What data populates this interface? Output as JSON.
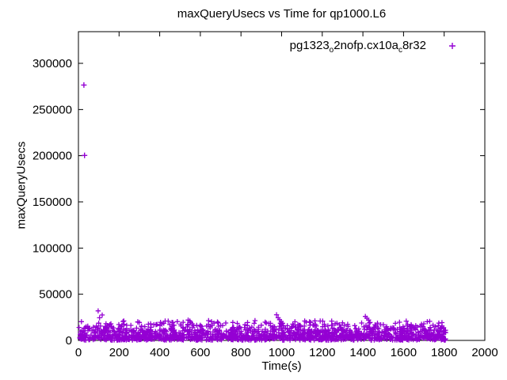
{
  "chart_data": {
    "type": "scatter",
    "title": "maxQueryUsecs vs Time for qp1000.L6",
    "xlabel": "Time(s)",
    "ylabel": "maxQueryUsecs",
    "xlim": [
      0,
      2000
    ],
    "ylim": [
      0,
      334286
    ],
    "xticks": [
      0,
      200,
      400,
      600,
      800,
      1000,
      1200,
      1400,
      1600,
      1800,
      2000
    ],
    "yticks": [
      0,
      50000,
      100000,
      150000,
      200000,
      250000,
      300000
    ],
    "grid": false,
    "legend_position": "top-right-inside",
    "frame_color": "#000000",
    "series": [
      {
        "name": "pg1323_o2nofp.cx10a_c8r32",
        "label_parts": [
          {
            "t": "pg1323",
            "sub": false
          },
          {
            "t": "o",
            "sub": true
          },
          {
            "t": "2nofp.cx10a",
            "sub": false
          },
          {
            "t": "c",
            "sub": true
          },
          {
            "t": "8r32",
            "sub": false
          }
        ],
        "marker": "plus",
        "color": "#9400D3",
        "outliers": [
          [
            27,
            276500
          ],
          [
            30,
            200300
          ]
        ],
        "spikes": [
          [
            97,
            32000
          ],
          [
            104,
            24500
          ],
          [
            117,
            27500
          ],
          [
            160,
            18000
          ],
          [
            225,
            17500
          ],
          [
            300,
            19500
          ],
          [
            355,
            18000
          ],
          [
            420,
            18500
          ],
          [
            470,
            16500
          ],
          [
            540,
            22000
          ],
          [
            548,
            21000
          ],
          [
            553,
            19500
          ],
          [
            560,
            18000
          ],
          [
            600,
            16500
          ],
          [
            640,
            17500
          ],
          [
            700,
            16000
          ],
          [
            760,
            19500
          ],
          [
            820,
            17000
          ],
          [
            900,
            16500
          ],
          [
            975,
            27800
          ],
          [
            983,
            24500
          ],
          [
            990,
            22500
          ],
          [
            998,
            20500
          ],
          [
            1005,
            18500
          ],
          [
            1080,
            17000
          ],
          [
            1140,
            16500
          ],
          [
            1190,
            21000
          ],
          [
            1250,
            16500
          ],
          [
            1300,
            19000
          ],
          [
            1325,
            17500
          ],
          [
            1360,
            16000
          ],
          [
            1412,
            26000
          ],
          [
            1420,
            24000
          ],
          [
            1428,
            22000
          ],
          [
            1435,
            19500
          ],
          [
            1500,
            17000
          ],
          [
            1560,
            18500
          ],
          [
            1620,
            17500
          ],
          [
            1660,
            16000
          ],
          [
            1700,
            18000
          ],
          [
            1745,
            16500
          ],
          [
            1790,
            15500
          ]
        ],
        "band": {
          "seed": 1234,
          "count": 1500,
          "t_min": 2,
          "t_max": 1808,
          "tiers": [
            {
              "weight": 0.55,
              "y_min": 200,
              "y_max": 6000
            },
            {
              "weight": 0.27,
              "y_min": 6000,
              "y_max": 11500
            },
            {
              "weight": 0.13,
              "y_min": 11500,
              "y_max": 16500
            },
            {
              "weight": 0.05,
              "y_min": 16500,
              "y_max": 21500
            }
          ]
        }
      }
    ]
  }
}
